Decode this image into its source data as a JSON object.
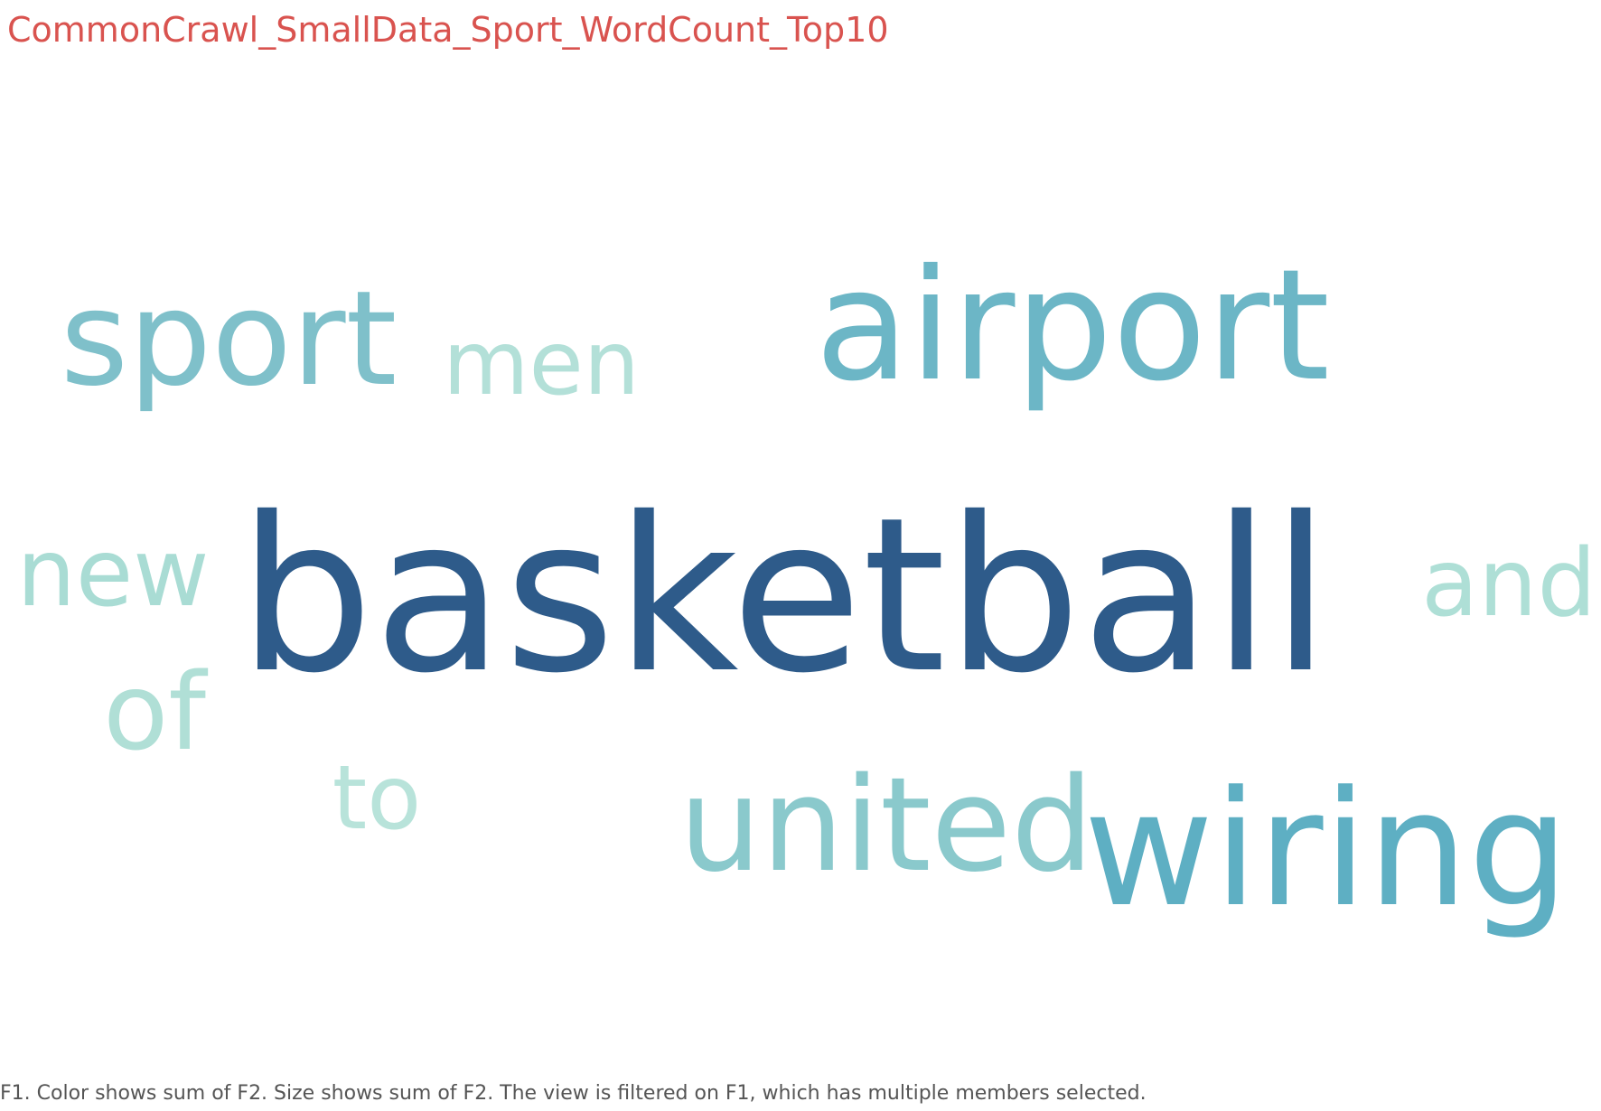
{
  "title": "CommonCrawl_SmallData_Sport_WordCount_Top10",
  "caption": "F1.  Color shows sum of F2.  Size shows sum of F2. The view is filtered on F1, which has multiple members selected.",
  "colors": {
    "title": "#d9534f",
    "caption": "#555555",
    "scale_low": "#b2dfd6",
    "scale_high": "#2e5b8a"
  },
  "chart_data": {
    "type": "wordcloud",
    "title": "CommonCrawl_SmallData_Sport_WordCount_Top10",
    "words": [
      {
        "text": "basketball",
        "color": "#2e5b8a"
      },
      {
        "text": "wiring",
        "color": "#5eafc3"
      },
      {
        "text": "airport",
        "color": "#6cb6c6"
      },
      {
        "text": "united",
        "color": "#8ac9cc"
      },
      {
        "text": "sport",
        "color": "#7fc0ca"
      },
      {
        "text": "men",
        "color": "#b3e0d8"
      },
      {
        "text": "new",
        "color": "#a9dcd4"
      },
      {
        "text": "and",
        "color": "#aedfd6"
      },
      {
        "text": "of",
        "color": "#b0dfd6"
      },
      {
        "text": "to",
        "color": "#b8e3da"
      }
    ]
  }
}
